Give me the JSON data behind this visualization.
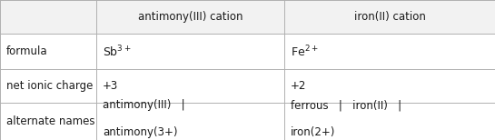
{
  "col_headers": [
    "antimony(III) cation",
    "iron(II) cation"
  ],
  "row_labels": [
    "formula",
    "net ionic charge",
    "alternate names"
  ],
  "background_color": "#ffffff",
  "header_bg": "#f2f2f2",
  "cell_bg": "#ffffff",
  "grid_color": "#b0b0b0",
  "text_color": "#1a1a1a",
  "font_size": 8.5,
  "col_bounds": [
    0.0,
    0.195,
    0.575,
    1.0
  ],
  "row_bounds": [
    1.0,
    0.76,
    0.505,
    0.265,
    0.0
  ]
}
